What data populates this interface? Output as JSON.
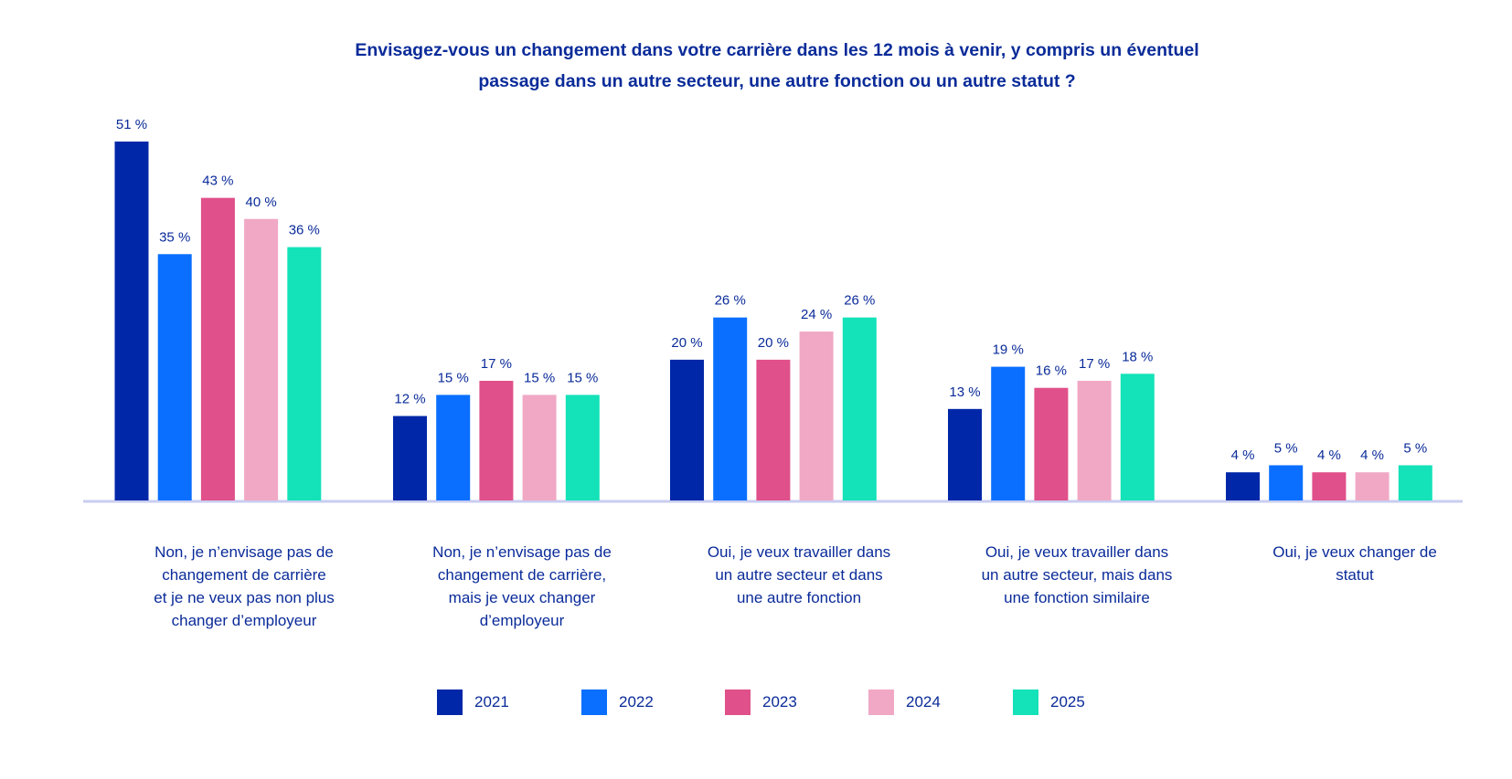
{
  "chart_data": {
    "type": "bar",
    "title_lines": [
      "Envisagez-vous un changement dans votre carrière dans les 12 mois à venir, y compris un éventuel",
      "passage dans un autre secteur, une autre fonction ou un autre statut ?"
    ],
    "categories": [
      [
        "Non, je n’envisage pas de",
        "changement de carrière",
        "et je ne veux pas non plus",
        "changer d’employeur"
      ],
      [
        "Non, je n’envisage pas de",
        "changement de carrière,",
        "mais je veux changer",
        "d’employeur"
      ],
      [
        "Oui, je veux travailler dans",
        "un autre secteur et dans",
        "une autre fonction"
      ],
      [
        "Oui, je veux travailler dans",
        "un autre secteur, mais dans",
        "une fonction similaire"
      ],
      [
        "Oui, je veux changer de",
        "statut"
      ]
    ],
    "series": [
      {
        "name": "2021",
        "color": "#0027a8",
        "values": [
          51,
          12,
          20,
          13,
          4
        ],
        "labels": [
          "51 %",
          "12 %",
          "20 %",
          "13 %",
          "4 %"
        ]
      },
      {
        "name": "2022",
        "color": "#0a6fff",
        "values": [
          35,
          15,
          26,
          19,
          5
        ],
        "labels": [
          "35 %",
          "15 %",
          "26 %",
          "19 %",
          "5 %"
        ]
      },
      {
        "name": "2023",
        "color": "#e0508a",
        "values": [
          43,
          17,
          20,
          16,
          4
        ],
        "labels": [
          "43 %",
          "17 %",
          "20 %",
          "16 %",
          "4 %"
        ]
      },
      {
        "name": "2024",
        "color": "#f0a8c5",
        "values": [
          40,
          15,
          24,
          17,
          4
        ],
        "labels": [
          "40 %",
          "15 %",
          "24 %",
          "17 %",
          "4 %"
        ]
      },
      {
        "name": "2025",
        "color": "#14e2b8",
        "values": [
          36,
          15,
          26,
          18,
          5
        ],
        "labels": [
          "36 %",
          "15 %",
          "26 %",
          "18 %",
          "5 %"
        ]
      }
    ],
    "ylim": [
      0,
      51
    ],
    "grid": false,
    "legend_position": "bottom",
    "axis_color": "#c9cdf0",
    "label_color": "#0a2b99"
  }
}
